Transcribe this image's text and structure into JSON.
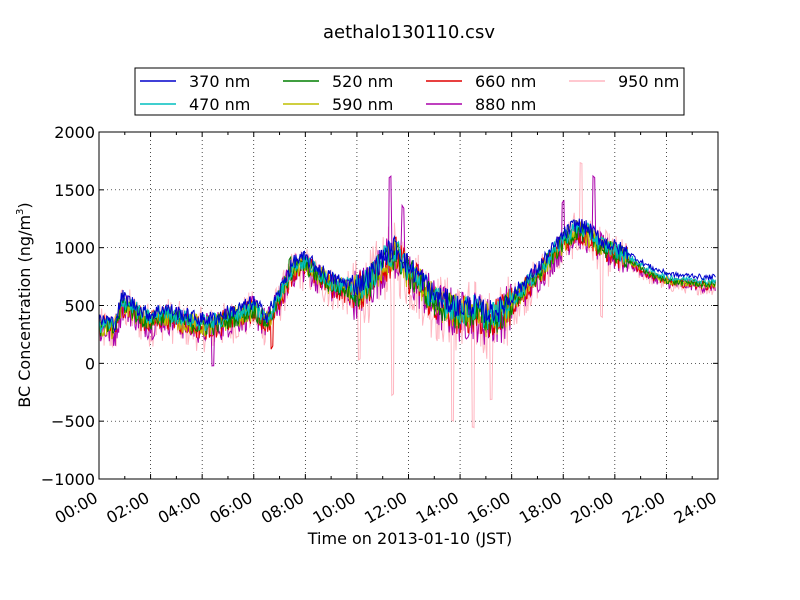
{
  "chart_data": {
    "type": "line",
    "title": "aethalo130110.csv",
    "xlabel": "Time on 2013-01-10 (JST)",
    "ylabel_main": "BC Concentration (ng/m",
    "ylabel_sup": "3",
    "ylabel_end": ")",
    "xlim": [
      0,
      24
    ],
    "ylim": [
      -1000,
      2000
    ],
    "grid": true,
    "legend_position": "top",
    "xticks": [
      0,
      2,
      4,
      6,
      8,
      10,
      12,
      14,
      16,
      18,
      20,
      22,
      24
    ],
    "xtick_labels": [
      "00:00",
      "02:00",
      "04:00",
      "06:00",
      "08:00",
      "10:00",
      "12:00",
      "14:00",
      "16:00",
      "18:00",
      "20:00",
      "22:00",
      "24:00"
    ],
    "yticks": [
      -1000,
      -500,
      0,
      500,
      1000,
      1500,
      2000
    ],
    "ytick_labels": [
      "−1000",
      "−500",
      "0",
      "500",
      "1000",
      "1500",
      "2000"
    ],
    "series": [
      {
        "name": "370 nm",
        "color": "#0000cc",
        "offset": 60,
        "noise": 0.6
      },
      {
        "name": "470 nm",
        "color": "#00bfbf",
        "offset": 30,
        "noise": 0.7
      },
      {
        "name": "520 nm",
        "color": "#007f00",
        "offset": 0,
        "noise": 0.8
      },
      {
        "name": "590 nm",
        "color": "#bfbf00",
        "offset": 0,
        "noise": 0.9
      },
      {
        "name": "660 nm",
        "color": "#e00000",
        "offset": -10,
        "noise": 1.0
      },
      {
        "name": "880 nm",
        "color": "#aa00aa",
        "offset": -20,
        "noise": 1.3
      },
      {
        "name": "950 nm",
        "color": "#ffb6c1",
        "offset": -30,
        "noise": 1.8
      }
    ],
    "baseline": {
      "x": [
        0,
        0.3,
        0.6,
        0.9,
        1.2,
        1.6,
        2.0,
        2.5,
        3.0,
        3.5,
        4.0,
        4.5,
        5.0,
        5.5,
        6.0,
        6.5,
        7.0,
        7.3,
        7.6,
        8.0,
        8.5,
        9.0,
        9.5,
        10.0,
        10.5,
        11.0,
        11.5,
        12.0,
        12.5,
        13.0,
        13.5,
        14.0,
        14.5,
        15.0,
        15.5,
        16.0,
        16.5,
        17.0,
        17.5,
        18.0,
        18.5,
        19.0,
        19.5,
        20.0,
        20.5,
        21.0,
        21.5,
        22.0,
        22.5,
        23.0,
        23.5,
        23.9
      ],
      "y": [
        300,
        320,
        280,
        520,
        480,
        400,
        360,
        420,
        380,
        350,
        320,
        330,
        380,
        420,
        470,
        350,
        560,
        720,
        830,
        850,
        760,
        680,
        640,
        620,
        700,
        860,
        950,
        780,
        680,
        520,
        480,
        420,
        450,
        380,
        400,
        520,
        640,
        760,
        900,
        1050,
        1150,
        1100,
        1000,
        950,
        900,
        820,
        760,
        720,
        700,
        700,
        680,
        690
      ]
    },
    "spikes": [
      {
        "x": 10.1,
        "dy": -600,
        "series": 6
      },
      {
        "x": 11.3,
        "dy": 700,
        "series": 5
      },
      {
        "x": 11.4,
        "dy": -1200,
        "series": 6
      },
      {
        "x": 11.8,
        "dy": 500,
        "series": 5
      },
      {
        "x": 13.7,
        "dy": -950,
        "series": 6
      },
      {
        "x": 14.5,
        "dy": -1000,
        "series": 6
      },
      {
        "x": 15.2,
        "dy": -700,
        "series": 6
      },
      {
        "x": 18.0,
        "dy": 350,
        "series": 5
      },
      {
        "x": 18.7,
        "dy": 600,
        "series": 6
      },
      {
        "x": 19.2,
        "dy": 550,
        "series": 5
      },
      {
        "x": 19.5,
        "dy": -600,
        "series": 6
      },
      {
        "x": 7.4,
        "dy": 150,
        "series": 2
      },
      {
        "x": 4.4,
        "dy": -350,
        "series": 5
      },
      {
        "x": 6.7,
        "dy": -300,
        "series": 4
      }
    ]
  }
}
